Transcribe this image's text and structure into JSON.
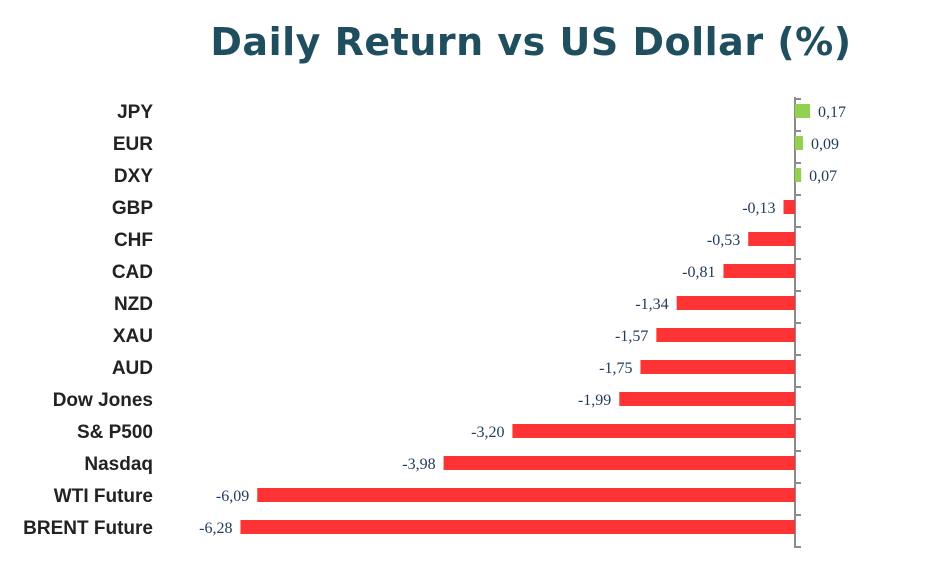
{
  "chart_data": {
    "type": "bar",
    "orientation": "horizontal",
    "title": "Daily Return vs US Dollar (%)",
    "categories": [
      "JPY",
      "EUR",
      "DXY",
      "GBP",
      "CHF",
      "CAD",
      "NZD",
      "XAU",
      "AUD",
      "Dow Jones",
      "S& P500",
      "Nasdaq",
      "WTI Future",
      "BRENT Future"
    ],
    "values": [
      0.17,
      0.09,
      0.07,
      -0.13,
      -0.53,
      -0.81,
      -1.34,
      -1.57,
      -1.75,
      -1.99,
      -3.2,
      -3.98,
      -6.09,
      -6.28
    ],
    "value_labels": [
      "0,17",
      "0,09",
      "0,07",
      "-0,13",
      "-0,53",
      "-0,81",
      "-1,34",
      "-1,57",
      "-1,75",
      "-1,99",
      "-3,20",
      "-3,98",
      "-6,09",
      "-6,28"
    ],
    "colors": {
      "positive": "#92d050",
      "negative": "#ff3333",
      "axis": "#8c8c8c",
      "title": "#1f4e5f",
      "value_label": "#1f3a5c"
    },
    "grid": false,
    "legend": "none"
  }
}
